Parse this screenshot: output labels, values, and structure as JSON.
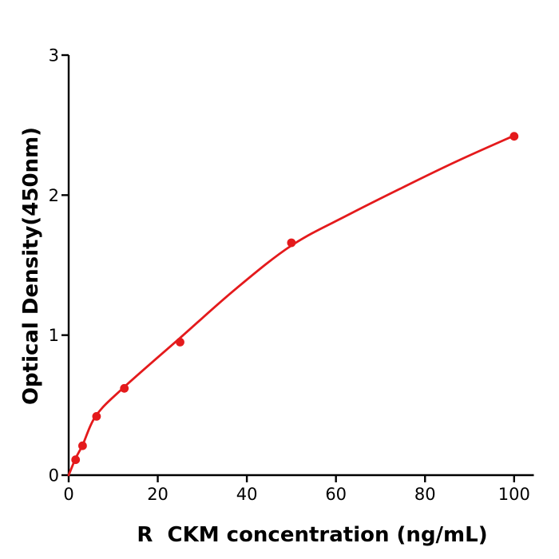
{
  "chart_data": {
    "type": "scatter",
    "description": "ELISA standard curve, red data points with fitted curve on white background, black L-shaped axes",
    "title": "",
    "xlabel": "R  CKM concentration (ng/mL)",
    "ylabel": "Optical Density(450nm)",
    "xlim": [
      0,
      104.5
    ],
    "ylim": [
      0,
      3
    ],
    "x_ticks": [
      0,
      20,
      40,
      60,
      80,
      100
    ],
    "y_ticks": [
      0,
      1,
      2,
      3
    ],
    "grid": false,
    "legend": false,
    "point_color": "#e41a1c",
    "line_color": "#e41a1c",
    "axis_color": "#000000",
    "points": [
      {
        "x": 1.5625,
        "y": 0.11
      },
      {
        "x": 3.125,
        "y": 0.21
      },
      {
        "x": 6.25,
        "y": 0.42
      },
      {
        "x": 12.5,
        "y": 0.62
      },
      {
        "x": 25,
        "y": 0.95
      },
      {
        "x": 50,
        "y": 1.66
      },
      {
        "x": 100,
        "y": 2.42
      }
    ],
    "fit_curve_anchors": [
      [
        0,
        0
      ],
      [
        1.5625,
        0.12
      ],
      [
        3.125,
        0.215
      ],
      [
        6.25,
        0.43
      ],
      [
        12.5,
        0.63
      ],
      [
        25,
        0.98
      ],
      [
        37.5,
        1.33
      ],
      [
        50,
        1.64
      ],
      [
        62.5,
        1.855
      ],
      [
        75,
        2.055
      ],
      [
        87.5,
        2.247
      ],
      [
        100,
        2.425
      ]
    ]
  }
}
